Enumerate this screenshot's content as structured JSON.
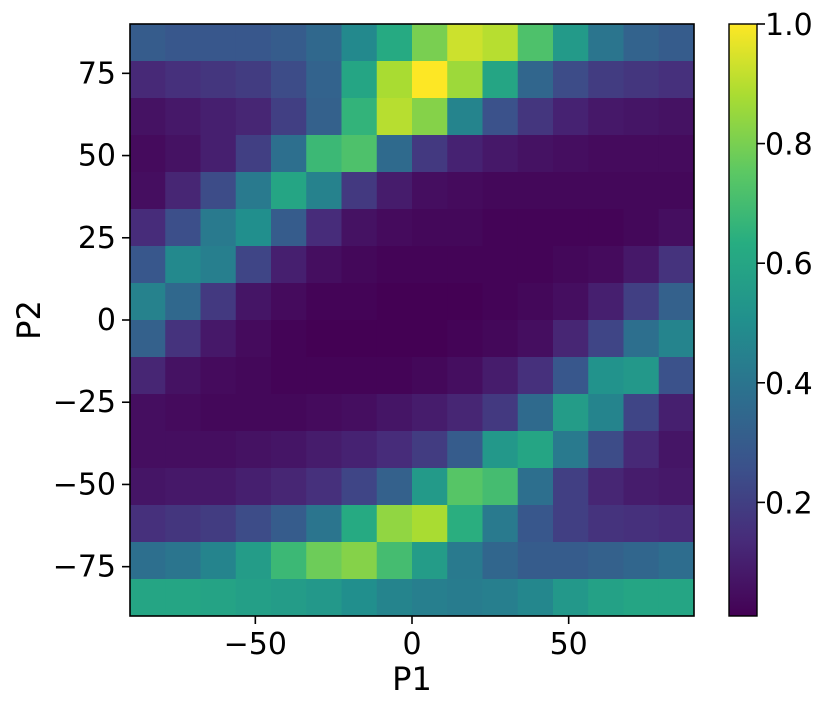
{
  "chart_data": {
    "type": "heatmap",
    "xlabel": "P1",
    "ylabel": "P2",
    "xlim": [
      -90,
      90
    ],
    "ylim": [
      -90,
      90
    ],
    "x_ticks": [
      -50,
      0,
      50
    ],
    "x_tick_labels": [
      "−50",
      "0",
      "50"
    ],
    "y_ticks": [
      -75,
      -50,
      -25,
      0,
      25,
      50,
      75
    ],
    "y_tick_labels": [
      "−75",
      "−50",
      "−25",
      "0",
      "25",
      "50",
      "75"
    ],
    "x_centers": [
      -84.375,
      -73.125,
      -61.875,
      -50.625,
      -39.375,
      -28.125,
      -16.875,
      -5.625,
      5.625,
      16.875,
      28.125,
      39.375,
      50.625,
      61.875,
      73.125,
      84.375
    ],
    "y_centers": [
      84.375,
      73.125,
      61.875,
      50.625,
      39.375,
      28.125,
      16.875,
      5.625,
      -5.625,
      -16.875,
      -28.125,
      -39.375,
      -50.625,
      -61.875,
      -73.125,
      -84.375
    ],
    "values": [
      [
        0.3,
        0.28,
        0.28,
        0.28,
        0.3,
        0.35,
        0.48,
        0.62,
        0.8,
        0.93,
        0.9,
        0.72,
        0.55,
        0.4,
        0.33,
        0.3
      ],
      [
        0.13,
        0.15,
        0.17,
        0.19,
        0.24,
        0.33,
        0.6,
        0.88,
        1.0,
        0.86,
        0.6,
        0.34,
        0.24,
        0.19,
        0.17,
        0.15
      ],
      [
        0.06,
        0.08,
        0.1,
        0.12,
        0.2,
        0.32,
        0.66,
        0.9,
        0.82,
        0.46,
        0.26,
        0.17,
        0.11,
        0.08,
        0.07,
        0.06
      ],
      [
        0.04,
        0.06,
        0.1,
        0.2,
        0.38,
        0.68,
        0.72,
        0.36,
        0.18,
        0.11,
        0.08,
        0.06,
        0.05,
        0.04,
        0.04,
        0.04
      ],
      [
        0.05,
        0.12,
        0.24,
        0.42,
        0.6,
        0.45,
        0.18,
        0.09,
        0.05,
        0.04,
        0.03,
        0.03,
        0.03,
        0.03,
        0.03,
        0.03
      ],
      [
        0.14,
        0.25,
        0.42,
        0.5,
        0.3,
        0.14,
        0.06,
        0.04,
        0.03,
        0.03,
        0.02,
        0.02,
        0.02,
        0.02,
        0.03,
        0.05
      ],
      [
        0.28,
        0.48,
        0.44,
        0.22,
        0.1,
        0.05,
        0.03,
        0.02,
        0.02,
        0.02,
        0.02,
        0.02,
        0.03,
        0.04,
        0.08,
        0.16
      ],
      [
        0.45,
        0.35,
        0.18,
        0.07,
        0.04,
        0.02,
        0.02,
        0.01,
        0.01,
        0.01,
        0.02,
        0.03,
        0.05,
        0.1,
        0.2,
        0.32
      ],
      [
        0.32,
        0.16,
        0.08,
        0.04,
        0.02,
        0.01,
        0.01,
        0.01,
        0.01,
        0.02,
        0.03,
        0.05,
        0.12,
        0.22,
        0.38,
        0.46
      ],
      [
        0.12,
        0.06,
        0.04,
        0.03,
        0.02,
        0.02,
        0.02,
        0.02,
        0.03,
        0.05,
        0.09,
        0.15,
        0.28,
        0.52,
        0.54,
        0.26
      ],
      [
        0.05,
        0.04,
        0.03,
        0.03,
        0.03,
        0.04,
        0.05,
        0.07,
        0.09,
        0.12,
        0.18,
        0.36,
        0.56,
        0.46,
        0.22,
        0.1
      ],
      [
        0.05,
        0.05,
        0.05,
        0.06,
        0.07,
        0.09,
        0.11,
        0.14,
        0.19,
        0.3,
        0.54,
        0.6,
        0.42,
        0.24,
        0.13,
        0.07
      ],
      [
        0.07,
        0.08,
        0.08,
        0.1,
        0.12,
        0.15,
        0.22,
        0.32,
        0.55,
        0.74,
        0.7,
        0.38,
        0.2,
        0.12,
        0.09,
        0.08
      ],
      [
        0.15,
        0.17,
        0.19,
        0.24,
        0.3,
        0.4,
        0.62,
        0.84,
        0.88,
        0.64,
        0.42,
        0.28,
        0.2,
        0.16,
        0.15,
        0.14
      ],
      [
        0.38,
        0.4,
        0.46,
        0.56,
        0.68,
        0.78,
        0.82,
        0.7,
        0.56,
        0.42,
        0.34,
        0.3,
        0.3,
        0.32,
        0.34,
        0.37
      ],
      [
        0.6,
        0.6,
        0.59,
        0.57,
        0.56,
        0.54,
        0.5,
        0.46,
        0.44,
        0.43,
        0.44,
        0.47,
        0.54,
        0.58,
        0.6,
        0.6
      ]
    ],
    "colormap": "viridis",
    "color_range": [
      0.01,
      1.0
    ],
    "colorbar_ticks": [
      0.2,
      0.4,
      0.6,
      0.8,
      1.0
    ],
    "colorbar_tick_labels": [
      "0.2",
      "0.4",
      "0.6",
      "0.8",
      "1.0"
    ],
    "grid": false
  }
}
